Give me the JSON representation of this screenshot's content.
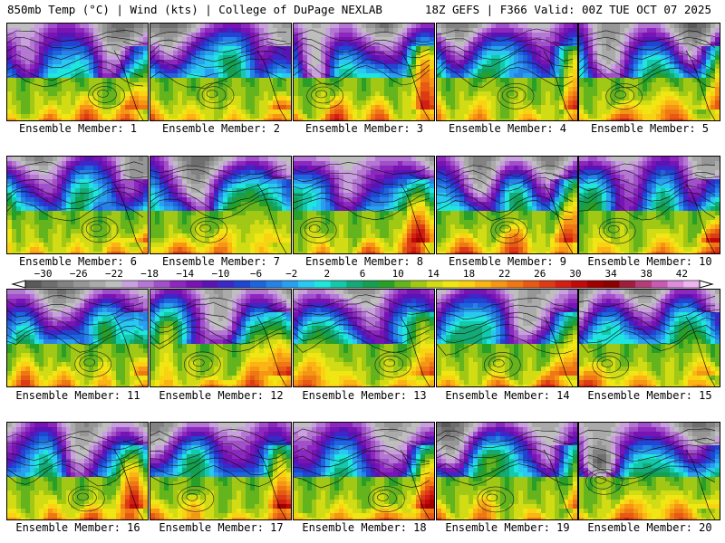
{
  "header": {
    "left": "850mb Temp (°C) | Wind (kts) | College of DuPage NEXLAB",
    "right": "18Z GEFS | F366 Valid: 00Z TUE OCT 07 2025"
  },
  "member_label_prefix": "Ensemble Member: ",
  "members": [
    "1",
    "2",
    "3",
    "4",
    "5",
    "6",
    "7",
    "8",
    "9",
    "10",
    "11",
    "12",
    "13",
    "14",
    "15",
    "16",
    "17",
    "18",
    "19",
    "20"
  ],
  "colorbar": {
    "tick_labels": [
      "-30",
      "-26",
      "-22",
      "-18",
      "-14",
      "-10",
      "-6",
      "-2",
      "2",
      "6",
      "10",
      "14",
      "18",
      "22",
      "26",
      "30",
      "34",
      "38",
      "42"
    ],
    "tick_values": [
      -30,
      -26,
      -22,
      -18,
      -14,
      -10,
      -6,
      -2,
      2,
      6,
      10,
      14,
      18,
      22,
      26,
      30,
      34,
      38,
      42
    ],
    "min": -32,
    "max": 44,
    "step": 2,
    "colors": [
      "#5a5a5a",
      "#6e6e6e",
      "#828282",
      "#969696",
      "#aaaaaa",
      "#bebebe",
      "#c8a0dc",
      "#b478d2",
      "#a050c8",
      "#8c28be",
      "#7814b4",
      "#5a14b4",
      "#3c28c8",
      "#1e46d2",
      "#1e64dc",
      "#2882e6",
      "#28a0f0",
      "#28c8f0",
      "#1ee6dc",
      "#14c8aa",
      "#14aa78",
      "#14a050",
      "#28a028",
      "#64b41e",
      "#a0c814",
      "#d2dc14",
      "#f0e614",
      "#fad214",
      "#fab414",
      "#f59614",
      "#f07814",
      "#e65a14",
      "#dc3c14",
      "#d21e14",
      "#be0a0a",
      "#a00000",
      "#8c0000",
      "#a01e3c",
      "#b43c78",
      "#c85ab4",
      "#dc8cdc",
      "#f0b4f0"
    ]
  }
}
